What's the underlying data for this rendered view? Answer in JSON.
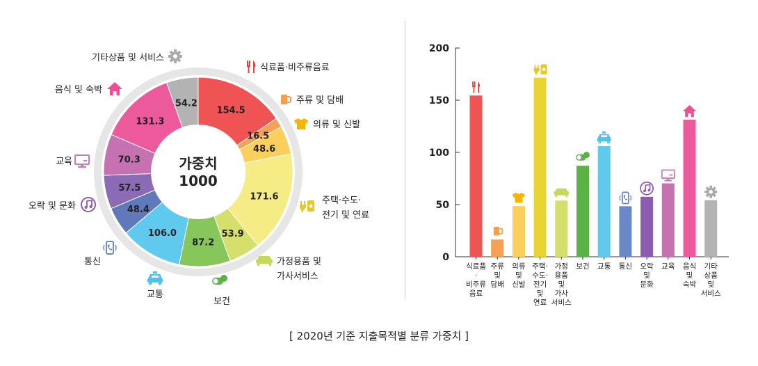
{
  "caption": "[ 2020년 기준 지출목적별 분류 가중치 ]",
  "chart_data": [
    {
      "type": "pie",
      "title": "",
      "center_label": "가중치",
      "center_value": "1000",
      "slices": [
        {
          "name": "식료품·비주류음료",
          "value": 154.5,
          "label": "154.5",
          "color": "#EF5353",
          "icon": "fork-knife-icon",
          "icon_color": "#E8413B"
        },
        {
          "name": "주류 및 담배",
          "value": 16.5,
          "label": "16.5",
          "color": "#F5A256",
          "icon": "beer-mug-icon",
          "icon_color": "#F4A04F"
        },
        {
          "name": "의류 및 신발",
          "value": 48.6,
          "label": "48.6",
          "color": "#FBCF5B",
          "icon": "shirt-icon",
          "icon_color": "#F7B500"
        },
        {
          "name": "주택·수도·전기 및 연료",
          "value": 171.6,
          "label": "171.6",
          "color": "#F6EC86",
          "icon": "plug-icon",
          "icon_color": "#E6C928"
        },
        {
          "name": "가정용품 및 가사서비스",
          "value": 53.9,
          "label": "53.9",
          "color": "#D5E06C",
          "icon": "sofa-icon",
          "icon_color": "#C6D85C"
        },
        {
          "name": "보건",
          "value": 87.2,
          "label": "87.2",
          "color": "#86C65A",
          "icon": "pill-icon",
          "icon_color": "#5BB347"
        },
        {
          "name": "교통",
          "value": 106.0,
          "label": "106.0",
          "color": "#5FC9EE",
          "icon": "taxi-icon",
          "icon_color": "#4EC3EE"
        },
        {
          "name": "통신",
          "value": 48.4,
          "label": "48.4",
          "color": "#5F79BA",
          "icon": "phone-icon",
          "icon_color": "#6C88C8"
        },
        {
          "name": "오락 및 문화",
          "value": 57.5,
          "label": "57.5",
          "color": "#8B6BB5",
          "icon": "music-note-icon",
          "icon_color": "#8B5CB0"
        },
        {
          "name": "교육",
          "value": 70.3,
          "label": "70.3",
          "color": "#C571B2",
          "icon": "monitor-icon",
          "icon_color": "#C77BB7"
        },
        {
          "name": "음식 및 숙박",
          "value": 131.3,
          "label": "131.3",
          "color": "#EC5A9C",
          "icon": "house-icon",
          "icon_color": "#EC4F93"
        },
        {
          "name": "기타상품 및 서비스",
          "value": 54.2,
          "label": "54.2",
          "color": "#B3B3B3",
          "icon": "gear-icon",
          "icon_color": "#AAAAAA"
        }
      ]
    },
    {
      "type": "bar",
      "ylim": [
        0,
        200
      ],
      "yticks": [
        "0",
        "50",
        "100",
        "150",
        "200"
      ],
      "categories": [
        "식료품·비주류음료",
        "주류 및 담배",
        "의류 및 신발",
        "주택·수도·전기 및 연료",
        "가정용품 및 가사서비스",
        "보건",
        "교통",
        "통신",
        "오락 및 문화",
        "교육",
        "음식 및 숙박",
        "기타상품 및 서비스"
      ],
      "category_label_lines": [
        [
          "식료품",
          "·",
          "비주류",
          "음료"
        ],
        [
          "주류",
          "및",
          "담배"
        ],
        [
          "의류",
          "및",
          "신발"
        ],
        [
          "주택·",
          "수도·",
          "전기",
          "및",
          "연료"
        ],
        [
          "가정",
          "용품",
          "및",
          "가사",
          "서비스"
        ],
        [
          "보건"
        ],
        [
          "교통"
        ],
        [
          "통신"
        ],
        [
          "오락",
          "및",
          "문화"
        ],
        [
          "교육"
        ],
        [
          "음식",
          "및",
          "숙박"
        ],
        [
          "기타",
          "상품",
          "및",
          "서비스"
        ]
      ],
      "values": [
        154.5,
        16.5,
        48.6,
        171.6,
        53.9,
        87.2,
        106.0,
        48.4,
        57.5,
        70.3,
        131.3,
        54.2
      ],
      "colors": [
        "#EF5353",
        "#F5A256",
        "#FBCF5B",
        "#E6D532",
        "#D5E06C",
        "#5BB347",
        "#5FC9EE",
        "#6A87C6",
        "#8B5CB0",
        "#C571B2",
        "#EC5A9C",
        "#B3B3B3"
      ]
    }
  ]
}
